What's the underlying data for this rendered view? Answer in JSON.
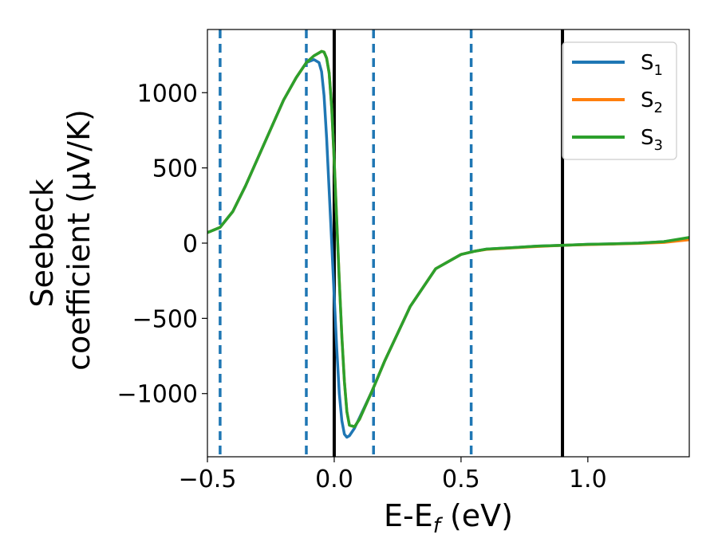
{
  "chart_data": {
    "type": "line",
    "title": "",
    "xlabel": "E-E",
    "xlabel_sub": "f",
    "xlabel_unit": " (eV)",
    "ylabel_line1": "Seebeck",
    "ylabel_line2": "coefficient  (μV/K)",
    "xlim": [
      -0.5,
      1.4
    ],
    "ylim": [
      -1420,
      1420
    ],
    "x_ticks": [
      -0.5,
      0.0,
      0.5,
      1.0
    ],
    "x_tick_labels": [
      "−0.5",
      "0.0",
      "0.5",
      "1.0"
    ],
    "y_ticks": [
      1000,
      500,
      0,
      -500,
      -1000
    ],
    "y_tick_labels": [
      "1000",
      "500",
      "0",
      "−500",
      "−1000"
    ],
    "grid": false,
    "legend_position": "top-right",
    "vertical_lines": {
      "solid": {
        "color": "#000000",
        "x": [
          0.0,
          0.9
        ]
      },
      "dashed": {
        "color": "#1f77b4",
        "x": [
          -0.45,
          -0.11,
          0.155,
          0.54
        ]
      }
    },
    "x": [
      -0.5,
      -0.45,
      -0.4,
      -0.35,
      -0.3,
      -0.25,
      -0.2,
      -0.15,
      -0.11,
      -0.08,
      -0.06,
      -0.05,
      -0.04,
      -0.03,
      -0.02,
      -0.01,
      0.0,
      0.01,
      0.02,
      0.03,
      0.04,
      0.05,
      0.06,
      0.08,
      0.1,
      0.15,
      0.2,
      0.3,
      0.4,
      0.5,
      0.55,
      0.6,
      0.7,
      0.8,
      0.9,
      1.0,
      1.1,
      1.2,
      1.3,
      1.4
    ],
    "series": [
      {
        "name": "S",
        "sub": "1",
        "color": "#1f77b4",
        "values": [
          70,
          105,
          210,
          380,
          570,
          760,
          950,
          1100,
          1200,
          1220,
          1200,
          1140,
          980,
          700,
          350,
          0,
          -350,
          -700,
          -1000,
          -1180,
          -1270,
          -1290,
          -1280,
          -1230,
          -1160,
          -980,
          -780,
          -420,
          -170,
          -75,
          -55,
          -40,
          -30,
          -20,
          -15,
          -8,
          -5,
          0,
          10,
          30
        ]
      },
      {
        "name": "S",
        "sub": "2",
        "color": "#ff7f0e",
        "values": [
          70,
          105,
          210,
          380,
          570,
          760,
          950,
          1100,
          1200,
          1245,
          1265,
          1275,
          1270,
          1230,
          1130,
          900,
          550,
          150,
          -250,
          -620,
          -920,
          -1120,
          -1210,
          -1220,
          -1170,
          -980,
          -780,
          -420,
          -170,
          -75,
          -55,
          -42,
          -32,
          -22,
          -15,
          -10,
          -6,
          -2,
          5,
          22
        ]
      },
      {
        "name": "S",
        "sub": "3",
        "color": "#2ca02c",
        "values": [
          70,
          105,
          210,
          380,
          570,
          760,
          950,
          1100,
          1200,
          1245,
          1265,
          1275,
          1270,
          1230,
          1130,
          900,
          550,
          150,
          -250,
          -620,
          -920,
          -1120,
          -1210,
          -1220,
          -1170,
          -980,
          -780,
          -420,
          -170,
          -75,
          -55,
          -40,
          -30,
          -20,
          -15,
          -8,
          -5,
          0,
          10,
          38
        ]
      }
    ]
  }
}
